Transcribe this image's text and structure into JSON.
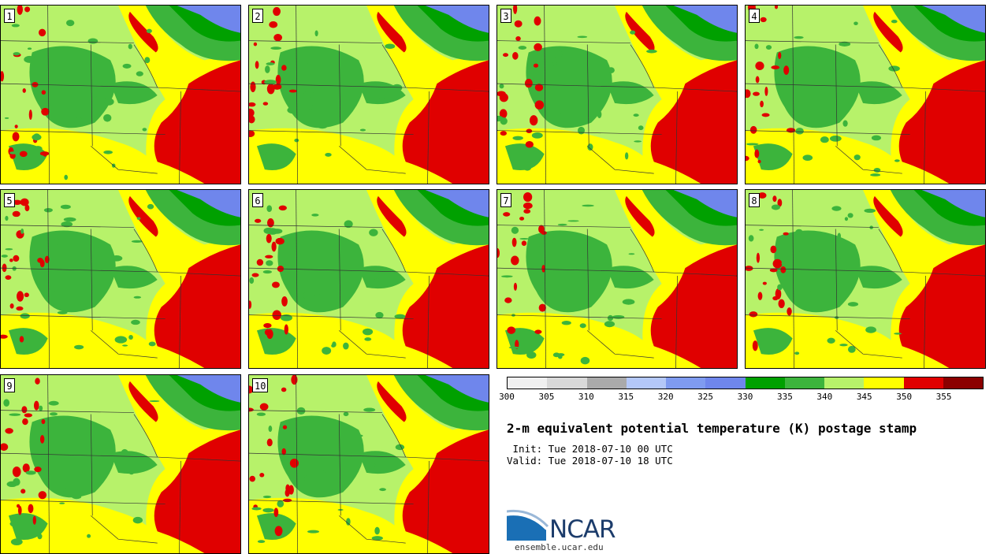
{
  "title": "2-m equivalent potential temperature (K) postage stamp",
  "init_text": " Init: Tue 2018-07-10 00 UTC",
  "valid_text": "Valid: Tue 2018-07-10 18 UTC",
  "logo_text": "NCAR",
  "url_text": "ensemble.ucar.edu",
  "members": [
    "1",
    "2",
    "3",
    "4",
    "5",
    "6",
    "7",
    "8",
    "9",
    "10"
  ],
  "colorbar": {
    "colors": [
      "#f0f0f0",
      "#d9d9d9",
      "#aaaaaa",
      "#b4c8f8",
      "#7f9bf0",
      "#6f86ec",
      "#00a000",
      "#3cb43c",
      "#b7f26a",
      "#ffff00",
      "#e00000",
      "#8b0000"
    ],
    "tick_labels": [
      "300",
      "305",
      "310",
      "315",
      "320",
      "325",
      "330",
      "335",
      "340",
      "345",
      "350",
      "355"
    ]
  },
  "palette": {
    "base_green_light": "#b7f26a",
    "green_mid": "#3cb43c",
    "green_dark": "#00a000",
    "yellow": "#ffff00",
    "red": "#e00000",
    "blue": "#6f86ec",
    "border": "#333333"
  }
}
